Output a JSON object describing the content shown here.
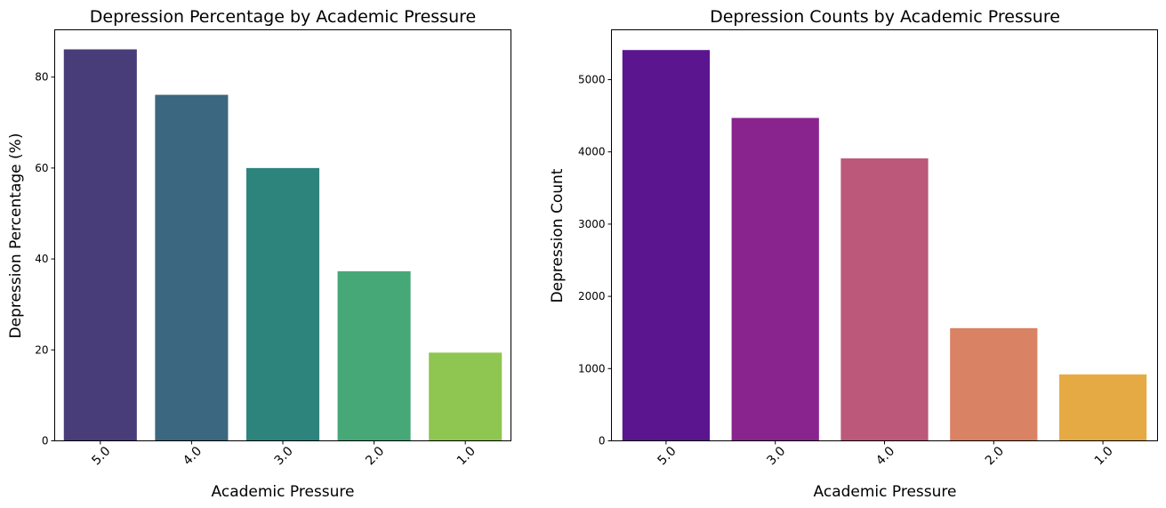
{
  "chart_data": [
    {
      "type": "bar",
      "title": "Depression Percentage by Academic Pressure",
      "xlabel": "Academic Pressure",
      "ylabel": "Depression Percentage (%)",
      "categories": [
        "5.0",
        "4.0",
        "3.0",
        "2.0",
        "1.0"
      ],
      "values": [
        86.1,
        76.1,
        60.0,
        37.3,
        19.4
      ],
      "yticks": [
        0,
        20,
        40,
        60,
        80
      ],
      "ylim": [
        0,
        90.4
      ],
      "colors": [
        "#483D78",
        "#3C6780",
        "#2D847D",
        "#46A876",
        "#8FC551"
      ],
      "grid": false,
      "legend": "none"
    },
    {
      "type": "bar",
      "title": "Depression Counts by Academic Pressure",
      "xlabel": "Academic Pressure",
      "ylabel": "Depression Count",
      "categories": [
        "5.0",
        "3.0",
        "4.0",
        "2.0",
        "1.0"
      ],
      "values": [
        5410,
        4470,
        3910,
        1560,
        920
      ],
      "yticks": [
        0,
        1000,
        2000,
        3000,
        4000,
        5000
      ],
      "ylim": [
        0,
        5690
      ],
      "colors": [
        "#5B158F",
        "#89248E",
        "#BC5879",
        "#D98264",
        "#E6AA44"
      ],
      "grid": false,
      "legend": "none"
    }
  ]
}
